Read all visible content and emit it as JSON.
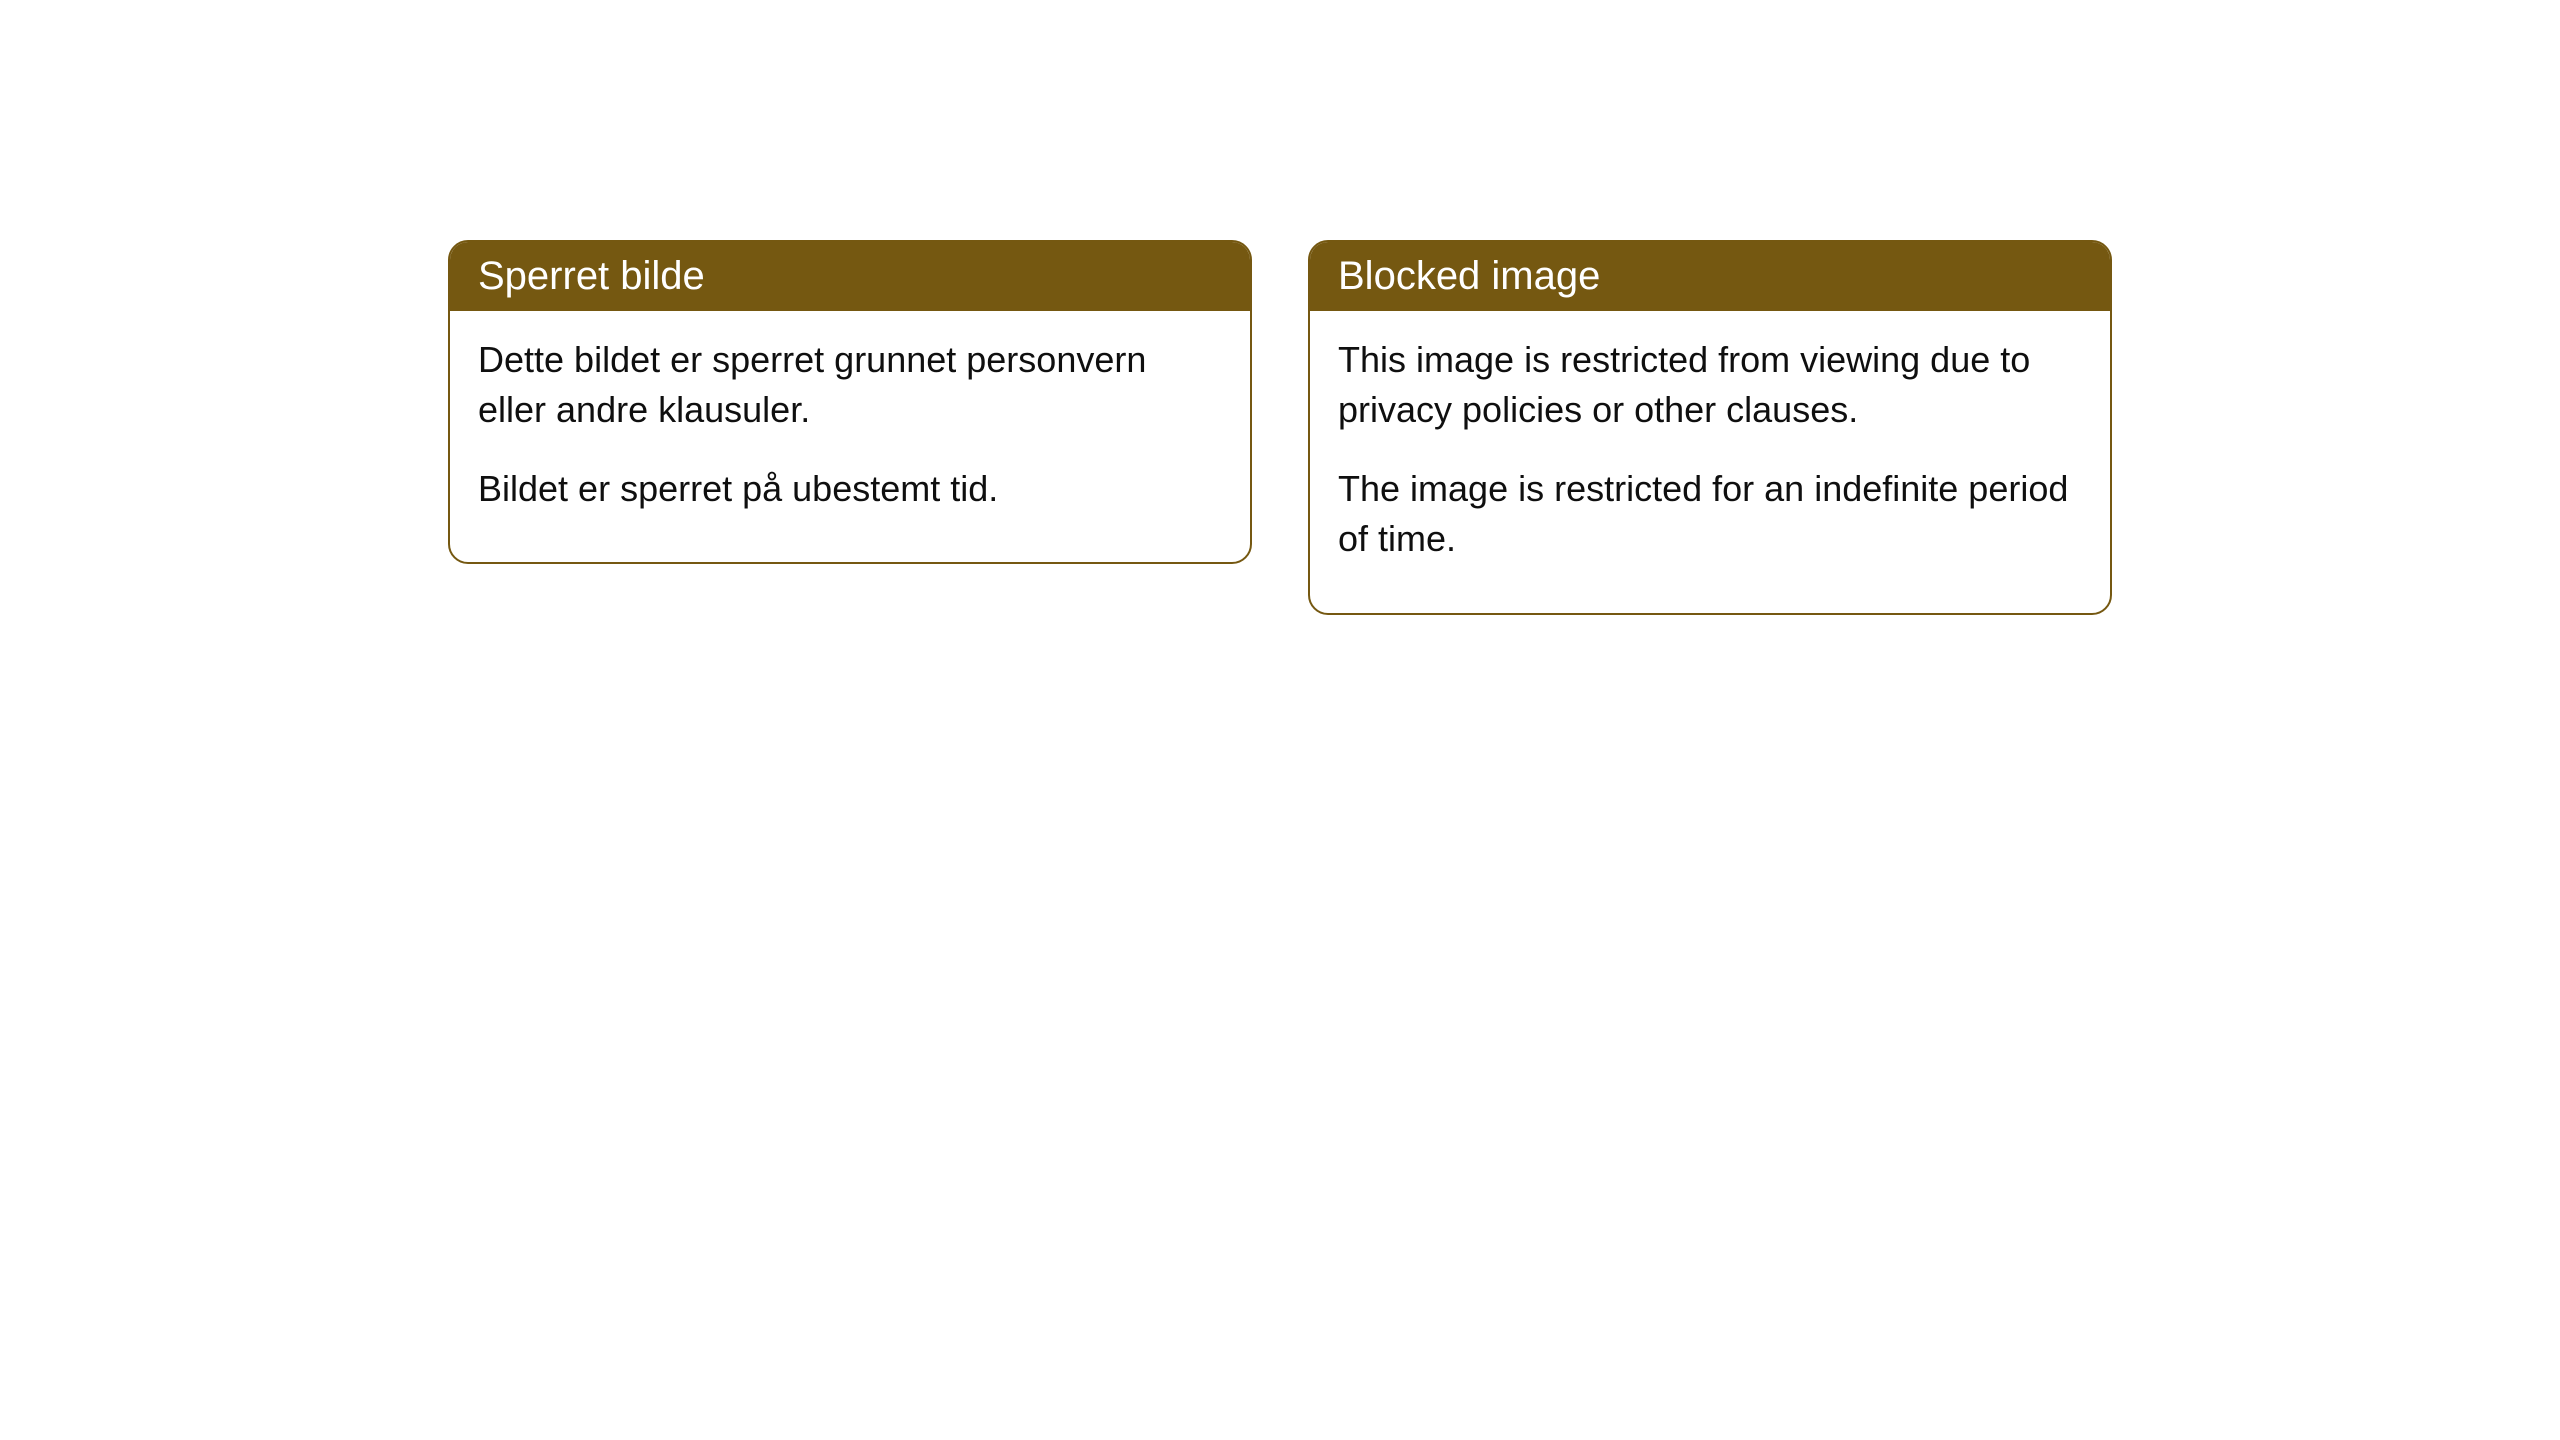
{
  "cards": [
    {
      "title": "Sperret bilde",
      "paragraph1": "Dette bildet er sperret grunnet personvern eller andre klausuler.",
      "paragraph2": "Bildet er sperret på ubestemt tid."
    },
    {
      "title": "Blocked image",
      "paragraph1": "This image is restricted from viewing due to privacy policies or other clauses.",
      "paragraph2": "The image is restricted for an indefinite period of time."
    }
  ],
  "style": {
    "header_bg_color": "#755811",
    "header_text_color": "#ffffff",
    "border_color": "#755811",
    "body_text_color": "#0f0f0f",
    "card_bg_color": "#ffffff",
    "page_bg_color": "#ffffff",
    "border_radius": 20,
    "title_fontsize": 40,
    "body_fontsize": 36
  }
}
